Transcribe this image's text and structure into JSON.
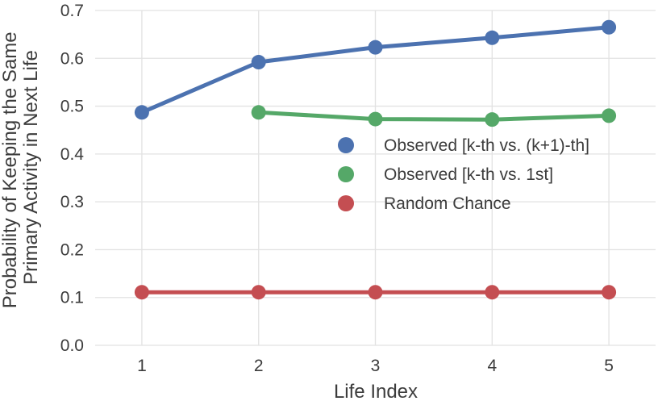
{
  "chart_data": {
    "type": "line",
    "xlabel": "Life Index",
    "ylabel_lines": [
      "Probability of Keeping the Same",
      "Primary Activity in Next Life"
    ],
    "xlim": [
      0.6,
      5.4
    ],
    "ylim": [
      0.0,
      0.7
    ],
    "x_ticks": [
      "1",
      "2",
      "3",
      "4",
      "5"
    ],
    "y_ticks": [
      "0.0",
      "0.1",
      "0.2",
      "0.3",
      "0.4",
      "0.5",
      "0.6",
      "0.7"
    ],
    "grid": true,
    "legend_position": "center-right",
    "series": [
      {
        "name": "Observed [k-th vs. (k+1)-th]",
        "color": "#4c72b0",
        "x": [
          1,
          2,
          3,
          4,
          5
        ],
        "y": [
          0.487,
          0.592,
          0.623,
          0.643,
          0.665
        ]
      },
      {
        "name": "Observed [k-th vs. 1st]",
        "color": "#55a868",
        "x": [
          2,
          3,
          4,
          5
        ],
        "y": [
          0.487,
          0.473,
          0.472,
          0.48
        ]
      },
      {
        "name": "Random Chance",
        "color": "#c44e52",
        "x": [
          1,
          2,
          3,
          4,
          5
        ],
        "y": [
          0.111,
          0.111,
          0.111,
          0.111,
          0.111
        ]
      }
    ]
  }
}
